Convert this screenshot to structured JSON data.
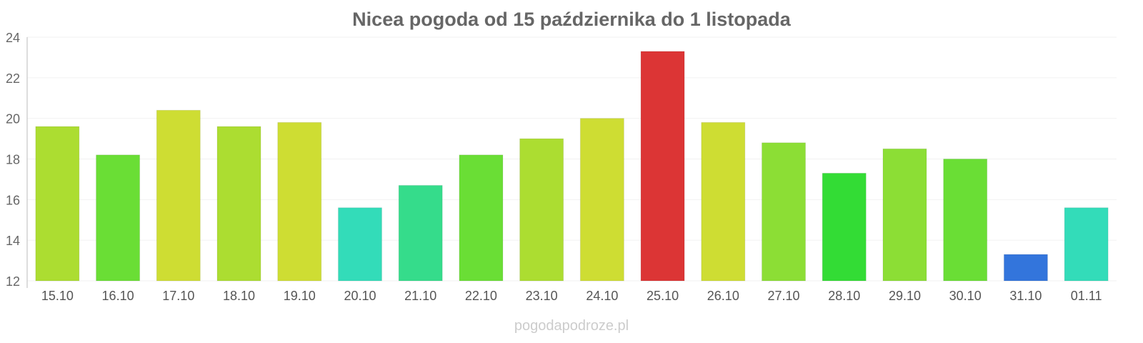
{
  "chart_data": {
    "type": "bar",
    "title": "Nicea pogoda od 15 października do 1 listopada",
    "xlabel": "",
    "ylabel": "",
    "ylim": [
      12,
      24
    ],
    "yticks": [
      "12",
      "14",
      "16",
      "18",
      "20",
      "22",
      "24"
    ],
    "grid": true,
    "categories": [
      "15.10",
      "16.10",
      "17.10",
      "18.10",
      "19.10",
      "20.10",
      "21.10",
      "22.10",
      "23.10",
      "24.10",
      "25.10",
      "26.10",
      "27.10",
      "28.10",
      "29.10",
      "30.10",
      "31.10",
      "01.11"
    ],
    "values": [
      19.6,
      18.2,
      20.4,
      19.6,
      19.8,
      15.6,
      16.7,
      18.2,
      19.0,
      20.0,
      23.3,
      19.8,
      18.8,
      17.3,
      18.5,
      18.0,
      13.3,
      15.6
    ],
    "colors": [
      "#acdd31",
      "#6ade35",
      "#cedd33",
      "#acdd31",
      "#cedd33",
      "#33dcb9",
      "#35dc8b",
      "#6ade35",
      "#acdd31",
      "#cedd33",
      "#dc3535",
      "#cedd33",
      "#8cde35",
      "#33dc35",
      "#8cde35",
      "#6ade35",
      "#3375dc",
      "#33dcb9"
    ]
  },
  "footer": "pogodapodroze.pl"
}
